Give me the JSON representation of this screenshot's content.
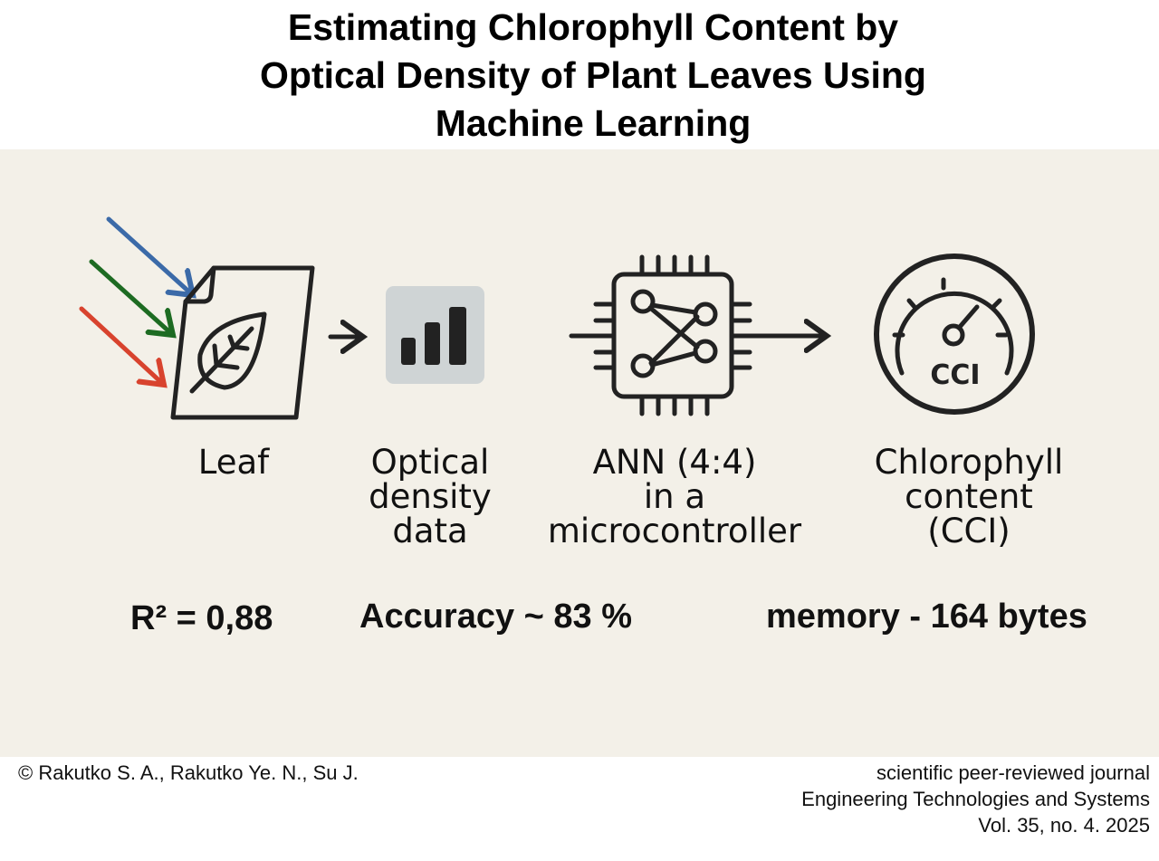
{
  "title": {
    "lines": [
      "Estimating Chlorophyll Content by",
      "Optical Density of Plant Leaves Using",
      "Machine Learning"
    ]
  },
  "steps": [
    {
      "icon": "leaf-document-icon",
      "label": "Leaf"
    },
    {
      "icon": "bar-chart-icon",
      "label_lines": [
        "Optical",
        "density",
        "data"
      ]
    },
    {
      "icon": "neural-network-chip-icon",
      "label_lines": [
        "ANN (4:4)",
        "in a",
        "microcontroller"
      ]
    },
    {
      "icon": "gauge-icon",
      "gauge_text": "CCI",
      "label_lines": [
        "Chlorophyll",
        "content",
        "(CCI)"
      ]
    }
  ],
  "light_arrows": {
    "colors": [
      "#3b6aa8",
      "#1d6b22",
      "#d8432e"
    ]
  },
  "stats": {
    "r2": "R² = 0,88",
    "accuracy": "Accuracy ~ 83 %",
    "memory": "memory - 164 bytes"
  },
  "footer": {
    "authors": "© Rakutko S. A., Rakutko Ye. N., Su J.",
    "journal_lines": [
      "scientific peer-reviewed journal",
      "Engineering Technologies and Systems",
      "Vol. 35, no. 4. 2025"
    ]
  },
  "colors": {
    "panel": "#f3f0e8",
    "icon_stroke": "#222222",
    "bar_bg": "#cfd4d5"
  }
}
